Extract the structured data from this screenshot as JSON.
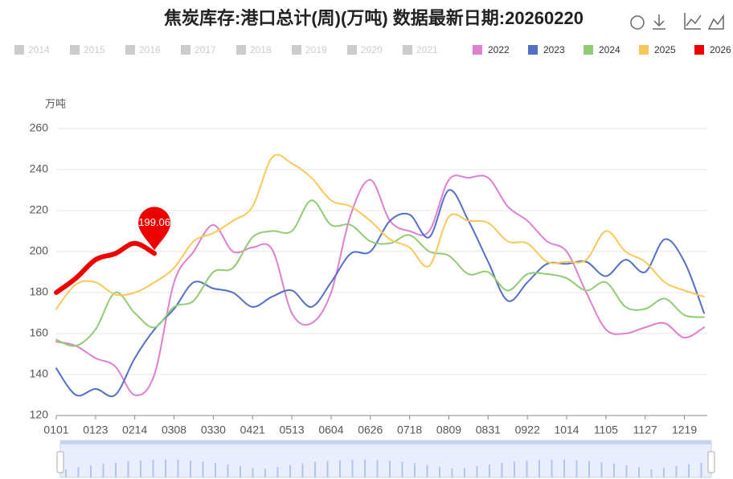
{
  "chart_data": {
    "type": "line",
    "title": "焦炭库存:港口总计(周)(万吨) 数据最新日期:20260220",
    "y_label": "万吨",
    "legend_inactive": [
      "2014",
      "2015",
      "2016",
      "2017",
      "2018",
      "2019",
      "2020",
      "2021"
    ],
    "categories": [
      "0101",
      null,
      "0123",
      null,
      "0214",
      null,
      "0308",
      null,
      "0330",
      null,
      "0421",
      null,
      "0513",
      null,
      "0604",
      null,
      "0626",
      null,
      "0718",
      null,
      "0809",
      null,
      "0831",
      null,
      "0922",
      null,
      "1014",
      null,
      "1105",
      null,
      "1127",
      null,
      "1219",
      null
    ],
    "ylim": [
      120,
      260
    ],
    "yticks": [
      120,
      140,
      160,
      180,
      200,
      220,
      240,
      260
    ],
    "grid": true,
    "series": [
      {
        "name": "2022",
        "color": "#df7fd0",
        "values": [
          156,
          154,
          148,
          144,
          130,
          140,
          185,
          200,
          213,
          200,
          202,
          201,
          170,
          165,
          180,
          218,
          235,
          215,
          210,
          210,
          235,
          236,
          236,
          222,
          215,
          205,
          200,
          180,
          162,
          160,
          163,
          165,
          158,
          163
        ]
      },
      {
        "name": "2023",
        "color": "#5470c6",
        "values": [
          143,
          130,
          133,
          130,
          148,
          162,
          172,
          185,
          182,
          180,
          173,
          178,
          181,
          173,
          185,
          199,
          200,
          215,
          218,
          207,
          230,
          215,
          195,
          176,
          185,
          194,
          194,
          195,
          188,
          196,
          190,
          206,
          195,
          170
        ]
      },
      {
        "name": "2024",
        "color": "#91cc75",
        "values": [
          157,
          154,
          162,
          180,
          170,
          163,
          173,
          176,
          190,
          192,
          207,
          210,
          210,
          225,
          213,
          213,
          205,
          204,
          208,
          200,
          198,
          189,
          190,
          181,
          189,
          189,
          187,
          181,
          185,
          173,
          172,
          177,
          169,
          168
        ]
      },
      {
        "name": "2025",
        "color": "#fac858",
        "values": [
          172,
          184,
          185,
          179,
          180,
          185,
          192,
          205,
          209,
          215,
          222,
          246,
          243,
          236,
          225,
          222,
          215,
          206,
          202,
          193,
          217,
          215,
          214,
          205,
          204,
          195,
          195,
          196,
          210,
          200,
          195,
          185,
          181,
          178
        ]
      },
      {
        "name": "2026",
        "color": "#ee0000",
        "values": [
          180,
          187,
          196,
          199,
          204,
          199.06,
          null,
          null,
          null,
          null,
          null,
          null,
          null,
          null,
          null,
          null,
          null,
          null,
          null,
          null,
          null,
          null,
          null,
          null,
          null,
          null,
          null,
          null,
          null,
          null,
          null,
          null,
          null,
          null
        ],
        "value_labels": [
          null,
          null,
          null,
          null,
          null,
          "199.06",
          null,
          null,
          null,
          null,
          null,
          null,
          null,
          null,
          null,
          null,
          null,
          null,
          null,
          null,
          null,
          null,
          null,
          null,
          null,
          null,
          null,
          null,
          null,
          null,
          null,
          null,
          null,
          null
        ]
      }
    ]
  }
}
